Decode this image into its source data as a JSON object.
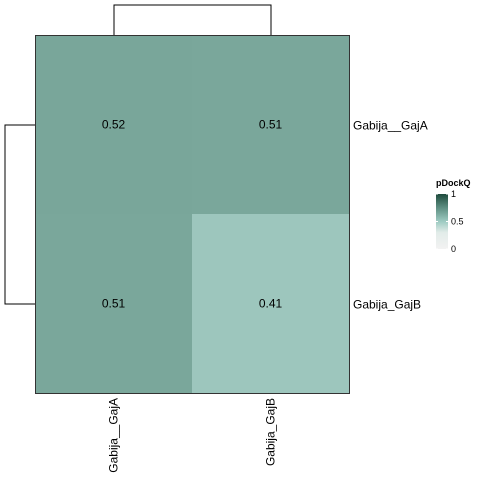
{
  "chart_data": {
    "type": "heatmap",
    "title": "",
    "rows": [
      "Gabija__GajA",
      "Gabija_GajB"
    ],
    "columns": [
      "Gabija__GajA",
      "Gabija_GajB"
    ],
    "values": [
      [
        0.52,
        0.51
      ],
      [
        0.51,
        0.41
      ]
    ],
    "value_labels": [
      [
        "0.52",
        "0.51"
      ],
      [
        "0.51",
        "0.41"
      ]
    ],
    "legend": {
      "title": "pDockQ",
      "ticks": [
        "1",
        "0.5",
        "0"
      ],
      "tick_values": [
        1,
        0.5,
        0
      ],
      "range": [
        0,
        1
      ],
      "color_low": "#f2f2f2",
      "color_high": "#1e4a3c",
      "placement": "right"
    },
    "row_dendrogram": true,
    "column_dendrogram": true
  }
}
